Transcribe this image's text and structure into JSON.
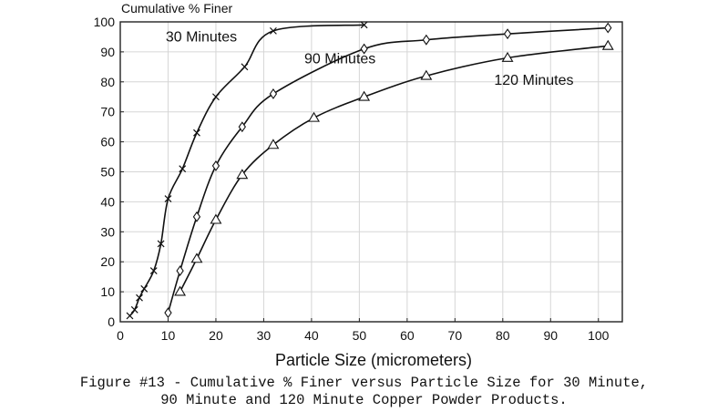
{
  "chart_data": {
    "type": "line",
    "title": "",
    "ylabel": "Cumulative % Finer",
    "xlabel": "Particle Size (micrometers)",
    "xlim": [
      0,
      105
    ],
    "ylim": [
      0,
      100
    ],
    "xticks": [
      0,
      10,
      20,
      30,
      40,
      50,
      60,
      70,
      80,
      90,
      100
    ],
    "yticks": [
      0,
      10,
      20,
      30,
      40,
      50,
      60,
      70,
      80,
      90,
      100
    ],
    "grid": true,
    "series": [
      {
        "name": "30 Minutes",
        "marker": "x",
        "points": [
          [
            2,
            2
          ],
          [
            3,
            4
          ],
          [
            4,
            8
          ],
          [
            5,
            11
          ],
          [
            7,
            17
          ],
          [
            8.5,
            26
          ],
          [
            10,
            41
          ],
          [
            13,
            51
          ],
          [
            16,
            63
          ],
          [
            20,
            75
          ],
          [
            26,
            85
          ],
          [
            32,
            97
          ],
          [
            51,
            99
          ]
        ]
      },
      {
        "name": "90 Minutes",
        "marker": "diamond",
        "points": [
          [
            10,
            3
          ],
          [
            12.5,
            17
          ],
          [
            16,
            35
          ],
          [
            20,
            52
          ],
          [
            25.5,
            65
          ],
          [
            32,
            76
          ],
          [
            51,
            91
          ],
          [
            64,
            94
          ],
          [
            81,
            96
          ],
          [
            102,
            98
          ]
        ]
      },
      {
        "name": "120 Minutes",
        "marker": "triangle",
        "points": [
          [
            12.5,
            10
          ],
          [
            16,
            21
          ],
          [
            20,
            34
          ],
          [
            25.5,
            49
          ],
          [
            32,
            59
          ],
          [
            40.5,
            68
          ],
          [
            51,
            75
          ],
          [
            64,
            82
          ],
          [
            81,
            88
          ],
          [
            102,
            92
          ]
        ]
      }
    ]
  },
  "caption": {
    "line1": "Figure #13 - Cumulative % Finer versus Particle Size for 30 Minute,",
    "line2": "90 Minute and 120 Minute Copper Powder Products."
  }
}
